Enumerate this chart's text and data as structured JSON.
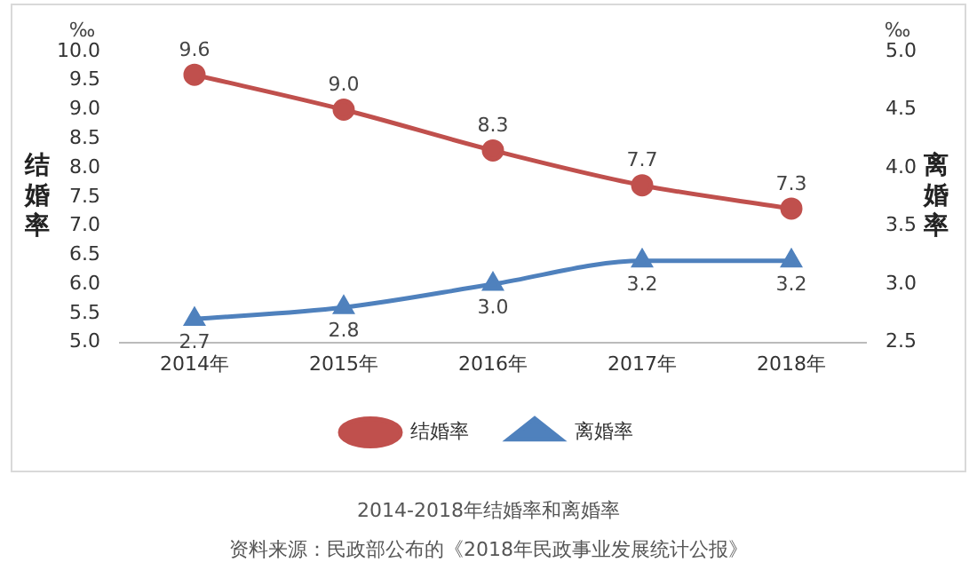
{
  "chart_data": {
    "type": "line",
    "title": "2014-2018年结婚率和离婚率",
    "ylabel": "结婚率",
    "y2label": "离婚率",
    "annotations": [
      "‰",
      "‰",
      "资料来源：民政部公布的《2018年民政事业发展统计公报》"
    ],
    "categories": [
      "2014年",
      "2015年",
      "2016年",
      "2017年",
      "2018年"
    ],
    "series": [
      {
        "name": "结婚率",
        "color": "#c0504d",
        "marker": "circle",
        "values": [
          9.6,
          9.0,
          8.3,
          7.7,
          7.3
        ],
        "value_labels": [
          "9.6",
          "9.0",
          "8.3",
          "7.7",
          "7.3"
        ]
      },
      {
        "name": "离婚率",
        "color": "#4f81bd",
        "marker": "triangle",
        "axis": "y2",
        "values": [
          2.7,
          2.8,
          3.0,
          3.2,
          3.2
        ],
        "value_labels": [
          "2.7",
          "2.8",
          "3.0",
          "3.2",
          "3.2"
        ]
      }
    ],
    "ylim": [
      5.0,
      10.0
    ],
    "yticks": [
      {
        "value": 5,
        "label": "5.0"
      },
      {
        "value": 5.5,
        "label": "5.5"
      },
      {
        "value": 6,
        "label": "6.0"
      },
      {
        "value": 6.5,
        "label": "6.5"
      },
      {
        "value": 7,
        "label": "7.0"
      },
      {
        "value": 7.5,
        "label": "7.5"
      },
      {
        "value": 8,
        "label": "8.0"
      },
      {
        "value": 8.5,
        "label": "8.5"
      },
      {
        "value": 9,
        "label": "9.0"
      },
      {
        "value": 9.5,
        "label": "9.5"
      },
      {
        "value": 10,
        "label": "10.0"
      }
    ],
    "y2lim": [
      2.5,
      5.0
    ],
    "y2ticks": [
      {
        "value": 2.5,
        "label": "2.5"
      },
      {
        "value": 3,
        "label": "3.0"
      },
      {
        "value": 3.5,
        "label": "3.5"
      },
      {
        "value": 4,
        "label": "4.0"
      },
      {
        "value": 4.5,
        "label": "4.5"
      },
      {
        "value": 5,
        "label": "5.0"
      }
    ],
    "legend": "bottom",
    "grid": false
  }
}
